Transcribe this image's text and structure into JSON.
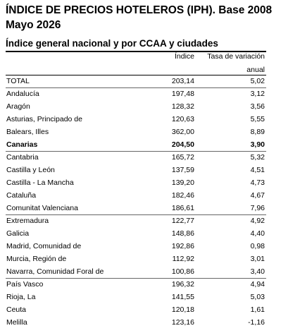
{
  "header": {
    "title": "ÍNDICE DE PRECIOS HOTELEROS (IPH). Base 2008",
    "subtitle": "Mayo 2026"
  },
  "table": {
    "caption": "Índice general nacional y por CCAA y ciudades",
    "columns": [
      "Índice",
      "Tasa de variación anual"
    ],
    "rows": [
      [
        "TOTAL",
        "203,14",
        "5,02"
      ],
      [
        "Andalucía",
        "197,48",
        "3,12"
      ],
      [
        "Aragón",
        "128,32",
        "3,56"
      ],
      [
        "Asturias, Principado de",
        "120,63",
        "5,55"
      ],
      [
        "Balears, Illes",
        "362,00",
        "8,89"
      ],
      [
        "Canarias",
        "204,50",
        "3,90"
      ],
      [
        "Cantabria",
        "165,72",
        "5,32"
      ],
      [
        "Castilla y León",
        "137,59",
        "4,51"
      ],
      [
        "Castilla - La Mancha",
        "139,20",
        "4,73"
      ],
      [
        "Cataluña",
        "182,46",
        "4,67"
      ],
      [
        "Comunitat Valenciana",
        "186,61",
        "7,96"
      ],
      [
        "Extremadura",
        "122,77",
        "4,92"
      ],
      [
        "Galicia",
        "148,86",
        "4,40"
      ],
      [
        "Madrid, Comunidad de",
        "192,86",
        "0,98"
      ],
      [
        "Murcia, Región de",
        "112,92",
        "3,01"
      ],
      [
        "Navarra, Comunidad Foral de",
        "100,86",
        "3,40"
      ],
      [
        "País Vasco",
        "196,32",
        "4,94"
      ],
      [
        "Rioja, La",
        "141,55",
        "5,03"
      ],
      [
        "Ceuta",
        "120,18",
        "1,61"
      ],
      [
        "Melilla",
        "123,16",
        "-1,16"
      ]
    ]
  }
}
